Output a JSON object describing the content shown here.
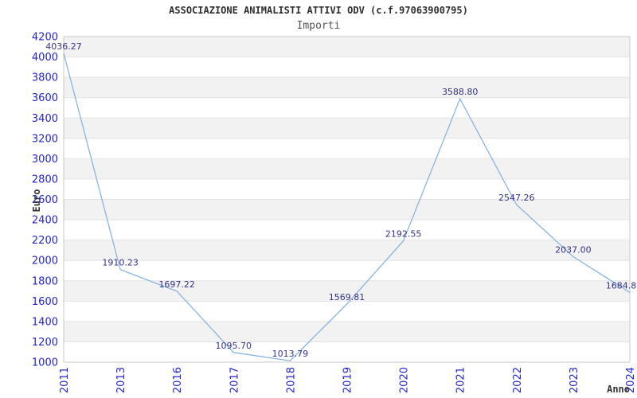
{
  "chart_data": {
    "type": "line",
    "title": "ASSOCIAZIONE ANIMALISTI ATTIVI ODV (c.f.97063900795)",
    "subtitle": "Importi",
    "xlabel": "Anno",
    "ylabel": "Euro",
    "categories": [
      "2011",
      "2013",
      "2016",
      "2017",
      "2018",
      "2019",
      "2020",
      "2021",
      "2022",
      "2023",
      "2024"
    ],
    "values": [
      4036.27,
      1910.23,
      1697.22,
      1095.7,
      1013.79,
      1569.81,
      2192.55,
      3588.8,
      2547.26,
      2037.0,
      1684.8
    ],
    "point_labels": [
      "4036.27",
      "1910.23",
      "1697.22",
      "1095.70",
      "1013.79",
      "1569.81",
      "2192.55",
      "3588.80",
      "2547.26",
      "2037.00",
      "1684.8"
    ],
    "ylim": [
      1000,
      4200
    ],
    "ytick_step": 200,
    "ytick_labels": [
      "1000",
      "1200",
      "1400",
      "1600",
      "1800",
      "2000",
      "2200",
      "2400",
      "2600",
      "2800",
      "3000",
      "3200",
      "3400",
      "3600",
      "3800",
      "4000",
      "4200"
    ],
    "grid": "horizontal-alternating-bands",
    "legend": "none",
    "colors": {
      "line": "#7fb0e2",
      "tick_label": "#2323cf",
      "point_label": "#333388",
      "band_gray": "#f2f2f2",
      "band_white": "#ffffff",
      "gridline": "#e4e4e4",
      "plot_border": "#c8c8c8",
      "title": "#2e2e2e",
      "subtitle": "#555555",
      "axis_title": "#333333"
    }
  }
}
